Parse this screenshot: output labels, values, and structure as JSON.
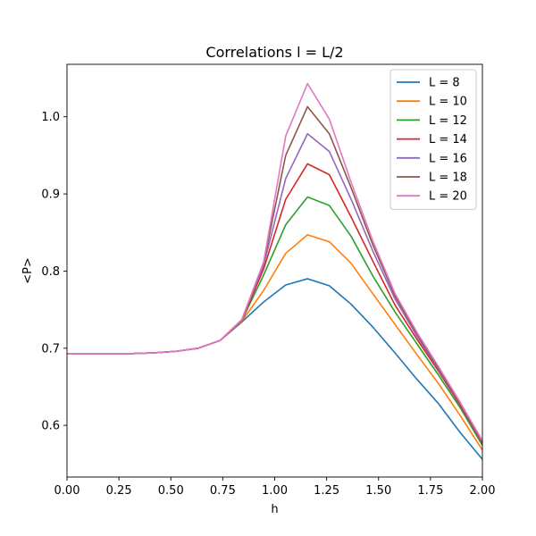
{
  "chart_data": {
    "type": "line",
    "title": "Correlations l = L/2",
    "xlabel": "h",
    "ylabel": "<P>",
    "xlim": [
      0.0,
      2.0
    ],
    "ylim": [
      0.533,
      1.068
    ],
    "xticks": [
      0.0,
      0.25,
      0.5,
      0.75,
      1.0,
      1.25,
      1.5,
      1.75,
      2.0
    ],
    "xtick_labels": [
      "0.00",
      "0.25",
      "0.50",
      "0.75",
      "1.00",
      "1.25",
      "1.50",
      "1.75",
      "2.00"
    ],
    "yticks": [
      0.6,
      0.7,
      0.8,
      0.9,
      1.0
    ],
    "ytick_labels": [
      "0.6",
      "0.7",
      "0.8",
      "0.9",
      "1.0"
    ],
    "grid": false,
    "legend_position": "top-right",
    "x": [
      0.0,
      0.105,
      0.211,
      0.316,
      0.421,
      0.526,
      0.632,
      0.737,
      0.842,
      0.947,
      1.053,
      1.158,
      1.263,
      1.368,
      1.474,
      1.579,
      1.684,
      1.789,
      1.895,
      2.0
    ],
    "series": [
      {
        "name": "L = 8",
        "color": "#1f77b4",
        "values": [
          0.693,
          0.693,
          0.693,
          0.693,
          0.694,
          0.696,
          0.7,
          0.71,
          0.734,
          0.76,
          0.782,
          0.79,
          0.781,
          0.757,
          0.727,
          0.694,
          0.66,
          0.628,
          0.59,
          0.556
        ]
      },
      {
        "name": "L = 10",
        "color": "#ff7f0e",
        "values": [
          0.693,
          0.693,
          0.693,
          0.693,
          0.694,
          0.696,
          0.7,
          0.71,
          0.735,
          0.775,
          0.823,
          0.847,
          0.838,
          0.81,
          0.77,
          0.731,
          0.692,
          0.654,
          0.612,
          0.568
        ]
      },
      {
        "name": "L = 12",
        "color": "#2ca02c",
        "values": [
          0.693,
          0.693,
          0.693,
          0.693,
          0.694,
          0.696,
          0.7,
          0.71,
          0.736,
          0.795,
          0.86,
          0.896,
          0.885,
          0.845,
          0.793,
          0.747,
          0.706,
          0.665,
          0.622,
          0.574
        ]
      },
      {
        "name": "L = 14",
        "color": "#d62728",
        "values": [
          0.693,
          0.693,
          0.693,
          0.693,
          0.694,
          0.696,
          0.7,
          0.71,
          0.736,
          0.803,
          0.893,
          0.939,
          0.925,
          0.87,
          0.812,
          0.756,
          0.712,
          0.67,
          0.625,
          0.577
        ]
      },
      {
        "name": "L = 16",
        "color": "#9467bd",
        "values": [
          0.693,
          0.693,
          0.693,
          0.693,
          0.694,
          0.696,
          0.7,
          0.71,
          0.737,
          0.808,
          0.92,
          0.978,
          0.955,
          0.893,
          0.825,
          0.764,
          0.716,
          0.672,
          0.627,
          0.578
        ]
      },
      {
        "name": "L = 18",
        "color": "#8c564b",
        "values": [
          0.693,
          0.693,
          0.693,
          0.693,
          0.694,
          0.696,
          0.7,
          0.71,
          0.737,
          0.811,
          0.95,
          1.013,
          0.978,
          0.908,
          0.833,
          0.768,
          0.719,
          0.674,
          0.628,
          0.579
        ]
      },
      {
        "name": "L = 20",
        "color": "#e377c2",
        "values": [
          0.693,
          0.693,
          0.693,
          0.693,
          0.694,
          0.696,
          0.7,
          0.71,
          0.737,
          0.812,
          0.975,
          1.043,
          0.997,
          0.915,
          0.838,
          0.771,
          0.721,
          0.676,
          0.629,
          0.58
        ]
      }
    ]
  }
}
